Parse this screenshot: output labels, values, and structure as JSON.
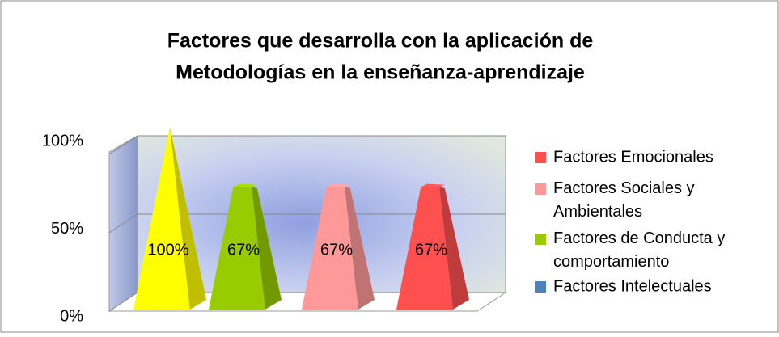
{
  "chart_data": {
    "type": "pyramid3d",
    "title": [
      "Factores que desarrolla con la aplicación de",
      "Metodologías en la enseñanza-aprendizaje"
    ],
    "series": [
      {
        "name": "Factores Intelectuales",
        "color": "#ffff00",
        "legend_color": "#4f81bd",
        "values": [
          100
        ],
        "value_labels": [
          "100%"
        ]
      },
      {
        "name": "Factores de Conducta y comportamiento",
        "color": "#99cc00",
        "legend_color": "#99cc00",
        "values": [
          67
        ],
        "value_labels": [
          "67%"
        ]
      },
      {
        "name": "Factores Sociales y Ambientales",
        "color": "#ff9999",
        "legend_color": "#ff9999",
        "values": [
          67
        ],
        "value_labels": [
          "67%"
        ]
      },
      {
        "name": "Factores Emocionales",
        "color": "#ff5050",
        "legend_color": "#ff5050",
        "values": [
          67
        ],
        "value_labels": [
          "67%"
        ]
      }
    ],
    "ylim": [
      0,
      100
    ],
    "yticks": [
      {
        "value": 0,
        "label": "0%"
      },
      {
        "value": 50,
        "label": "50%"
      },
      {
        "value": 100,
        "label": "100%"
      }
    ],
    "grid": true,
    "legend": "right"
  }
}
